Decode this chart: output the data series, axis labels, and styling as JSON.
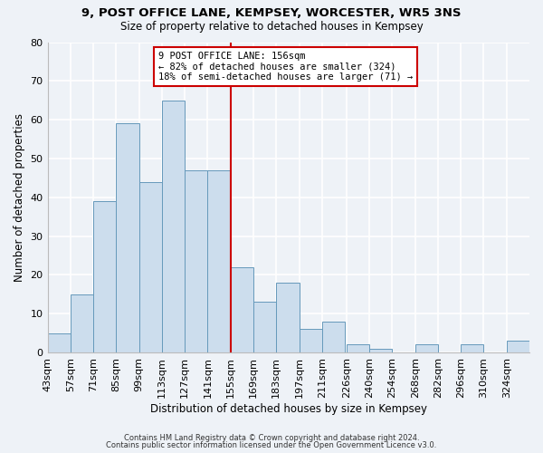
{
  "title": "9, POST OFFICE LANE, KEMPSEY, WORCESTER, WR5 3NS",
  "subtitle": "Size of property relative to detached houses in Kempsey",
  "xlabel": "Distribution of detached houses by size in Kempsey",
  "ylabel": "Number of detached properties",
  "bar_color": "#ccdded",
  "bar_edge_color": "#6699bb",
  "background_color": "#eef2f7",
  "grid_color": "#ffffff",
  "bin_edges": [
    43,
    57,
    71,
    85,
    99,
    113,
    127,
    141,
    155,
    169,
    183,
    197,
    211,
    226,
    240,
    254,
    268,
    282,
    296,
    310,
    324,
    338
  ],
  "bin_labels": [
    "43sqm",
    "57sqm",
    "71sqm",
    "85sqm",
    "99sqm",
    "113sqm",
    "127sqm",
    "141sqm",
    "155sqm",
    "169sqm",
    "183sqm",
    "197sqm",
    "211sqm",
    "226sqm",
    "240sqm",
    "254sqm",
    "268sqm",
    "282sqm",
    "296sqm",
    "310sqm",
    "324sqm"
  ],
  "values": [
    5,
    15,
    39,
    59,
    44,
    65,
    47,
    47,
    22,
    13,
    18,
    6,
    8,
    2,
    1,
    0,
    2,
    0,
    2,
    0,
    3
  ],
  "vline_x": 155,
  "vline_color": "#cc0000",
  "annotation_title": "9 POST OFFICE LANE: 156sqm",
  "annotation_line2": "← 82% of detached houses are smaller (324)",
  "annotation_line3": "18% of semi-detached houses are larger (71) →",
  "annotation_box_color": "#ffffff",
  "annotation_box_edge_color": "#cc0000",
  "ylim": [
    0,
    80
  ],
  "yticks": [
    0,
    10,
    20,
    30,
    40,
    50,
    60,
    70,
    80
  ],
  "footer1": "Contains HM Land Registry data © Crown copyright and database right 2024.",
  "footer2": "Contains public sector information licensed under the Open Government Licence v3.0."
}
